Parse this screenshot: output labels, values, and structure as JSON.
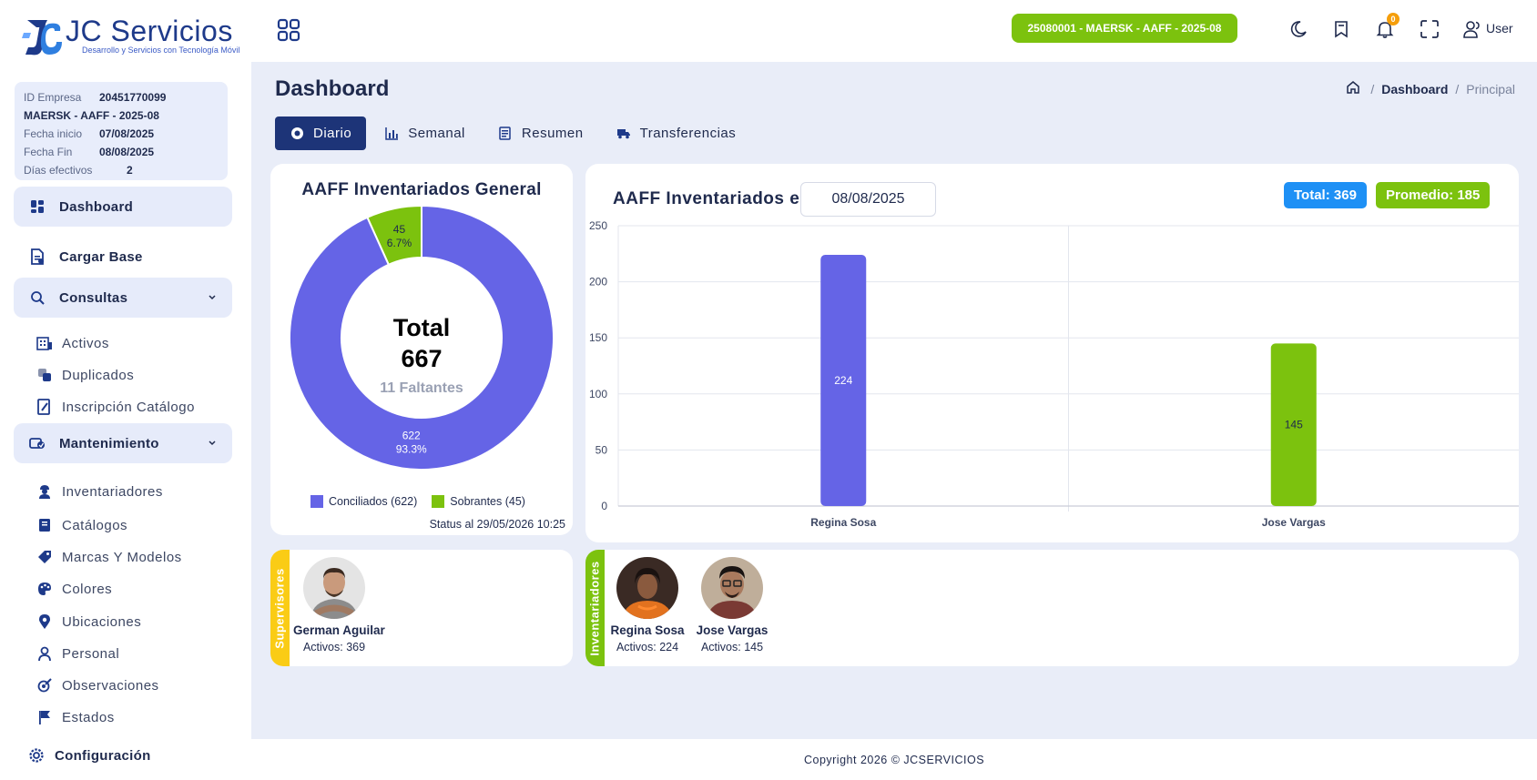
{
  "brand": {
    "title": "JC Servicios",
    "subtitle": "Desarrollo y Servicios con Tecnología Móvil"
  },
  "info": {
    "id_label": "ID Empresa",
    "id_value": "20451770099",
    "project": "MAERSK - AAFF - 2025-08",
    "start_label": "Fecha inicio",
    "start_value": "07/08/2025",
    "end_label": "Fecha Fin",
    "end_value": "08/08/2025",
    "days_label": "Días efectivos",
    "days_value": "2"
  },
  "sidebar": {
    "dashboard": "Dashboard",
    "cargar_base": "Cargar Base",
    "consultas": "Consultas",
    "consultas_items": [
      "Activos",
      "Duplicados",
      "Inscripción Catálogo"
    ],
    "mantenimiento": "Mantenimiento",
    "mantenimiento_items": [
      "Inventariadores",
      "Catálogos",
      "Marcas Y Modelos",
      "Colores",
      "Ubicaciones",
      "Personal",
      "Observaciones",
      "Estados"
    ],
    "configuracion": "Configuración"
  },
  "topbar": {
    "project_pill": "25080001 - MAERSK - AAFF - 2025-08",
    "notifications_count": "0",
    "user_label": "User"
  },
  "page": {
    "title": "Dashboard",
    "breadcrumb": [
      "Dashboard",
      "Principal"
    ]
  },
  "tabs": [
    "Diario",
    "Semanal",
    "Resumen",
    "Transferencias"
  ],
  "donut": {
    "title": "AAFF Inventariados General",
    "center_label": "Total",
    "center_value": "667",
    "missing": "11 Faltantes",
    "status": "Status al 29/05/2026 10:25"
  },
  "chart_data": [
    {
      "type": "pie",
      "title": "AAFF Inventariados General",
      "categories": [
        "Conciliados",
        "Sobrantes"
      ],
      "values": [
        622,
        45
      ],
      "percent_labels": [
        "93.3%",
        "6.7%"
      ],
      "legend": [
        "Conciliados (622)",
        "Sobrantes (45)"
      ],
      "colors": [
        "#6564e6",
        "#7cc20e"
      ],
      "legend_position": "bottom"
    },
    {
      "type": "bar",
      "title": "AAFF Inventariados el",
      "categories": [
        "Regina Sosa",
        "Jose Vargas"
      ],
      "values": [
        224,
        145
      ],
      "colors": [
        "#6564e6",
        "#7cc20e"
      ],
      "ylim": [
        0,
        250
      ],
      "yticks": [
        0,
        50,
        100,
        150,
        200,
        250
      ],
      "grid": true
    }
  ],
  "bar_header": {
    "title": "AAFF Inventariados el",
    "date": "08/08/2025",
    "total": "Total: 369",
    "avg": "Promedio: 185"
  },
  "supervisors": {
    "tag": "Supervisores",
    "people": [
      {
        "name": "German Aguilar",
        "activos": "Activos: 369"
      }
    ]
  },
  "inventariadores": {
    "tag": "Inventariadores",
    "people": [
      {
        "name": "Regina Sosa",
        "activos": "Activos: 224"
      },
      {
        "name": "Jose Vargas",
        "activos": "Activos: 145"
      }
    ]
  },
  "footer": "Copyright 2026 © JCSERVICIOS"
}
